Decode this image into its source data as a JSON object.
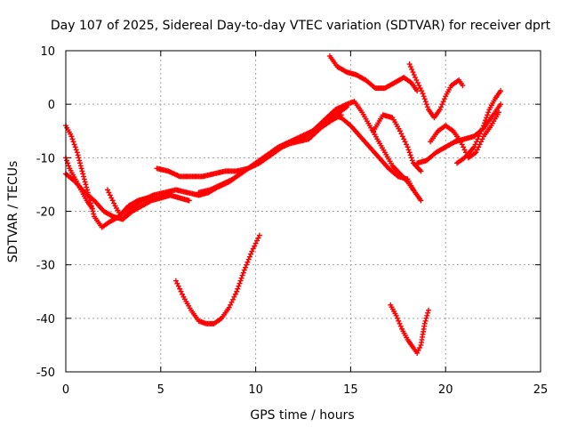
{
  "chart_data": {
    "type": "scatter",
    "title": "Day 107 of 2025, Sidereal Day-to-day VTEC variation (SDTVAR) for receiver dprt",
    "xlabel": "GPS time / hours",
    "ylabel": "SDTVAR / TECUs",
    "xlim": [
      0,
      25
    ],
    "ylim": [
      -50,
      10
    ],
    "xticks": [
      "0",
      "5",
      "10",
      "15",
      "20",
      "25"
    ],
    "yticks": [
      "10",
      "0",
      "-10",
      "-20",
      "-30",
      "-40",
      "-50"
    ],
    "grid": true,
    "marker": "+",
    "color": "#ff0000",
    "series": [
      {
        "points": [
          [
            0,
            -4
          ],
          [
            0.3,
            -6
          ],
          [
            0.6,
            -9
          ],
          [
            0.9,
            -13
          ],
          [
            1.2,
            -17
          ],
          [
            1.5,
            -21
          ],
          [
            1.9,
            -23
          ],
          [
            2.3,
            -22
          ],
          [
            2.8,
            -21
          ],
          [
            3.3,
            -19
          ],
          [
            3.8,
            -18
          ],
          [
            4.3,
            -17.5
          ]
        ]
      },
      {
        "points": [
          [
            0,
            -10
          ],
          [
            0.2,
            -12
          ],
          [
            0.5,
            -14
          ],
          [
            0.8,
            -16
          ],
          [
            1.1,
            -18
          ],
          [
            1.4,
            -19.5
          ]
        ]
      },
      {
        "points": [
          [
            0,
            -13
          ],
          [
            0.5,
            -14.5
          ],
          [
            1,
            -16.5
          ],
          [
            1.5,
            -18
          ],
          [
            2,
            -20
          ],
          [
            2.5,
            -21
          ],
          [
            3,
            -21.5
          ],
          [
            3.5,
            -20
          ],
          [
            4,
            -19
          ],
          [
            4.5,
            -18
          ],
          [
            5,
            -17.5
          ],
          [
            5.5,
            -17
          ],
          [
            6,
            -17.5
          ],
          [
            6.5,
            -18
          ]
        ]
      },
      {
        "points": [
          [
            2.2,
            -16
          ],
          [
            2.6,
            -19
          ],
          [
            3,
            -21.5
          ],
          [
            3.4,
            -19.5
          ],
          [
            4,
            -18
          ],
          [
            4.6,
            -17
          ],
          [
            5.2,
            -16.5
          ],
          [
            5.8,
            -16
          ],
          [
            6.4,
            -16.5
          ],
          [
            7,
            -17
          ],
          [
            7.5,
            -16.5
          ],
          [
            8,
            -15.5
          ],
          [
            8.6,
            -14.5
          ],
          [
            9.2,
            -13
          ],
          [
            9.8,
            -11.5
          ],
          [
            10.4,
            -10
          ],
          [
            11,
            -8.5
          ],
          [
            11.6,
            -7.5
          ],
          [
            12.2,
            -7
          ],
          [
            12.8,
            -6.5
          ],
          [
            13.4,
            -4.5
          ],
          [
            14,
            -3
          ],
          [
            14.5,
            -2
          ]
        ]
      },
      {
        "points": [
          [
            4.8,
            -12
          ],
          [
            5.4,
            -12.5
          ],
          [
            6,
            -13.5
          ],
          [
            6.6,
            -13.5
          ],
          [
            7.2,
            -13.5
          ],
          [
            7.8,
            -13
          ],
          [
            8.4,
            -12.5
          ],
          [
            9,
            -12.5
          ],
          [
            9.6,
            -12
          ],
          [
            10.2,
            -11
          ],
          [
            10.8,
            -9.5
          ],
          [
            11.4,
            -8
          ],
          [
            12,
            -7
          ],
          [
            12.6,
            -6
          ],
          [
            13.2,
            -4.5
          ],
          [
            13.8,
            -3
          ],
          [
            14.4,
            -1.5
          ],
          [
            14.8,
            -0.5
          ]
        ]
      },
      {
        "points": [
          [
            7,
            -16.5
          ],
          [
            7.6,
            -16
          ],
          [
            8.2,
            -15
          ],
          [
            8.8,
            -14
          ],
          [
            9.4,
            -12.5
          ],
          [
            10,
            -11
          ],
          [
            10.6,
            -9.5
          ],
          [
            11.2,
            -8
          ],
          [
            11.8,
            -7
          ],
          [
            12.4,
            -6
          ],
          [
            13,
            -5
          ],
          [
            13.6,
            -3
          ],
          [
            14.2,
            -1
          ],
          [
            14.8,
            0
          ],
          [
            15.2,
            0.5
          ],
          [
            15.6,
            -1.5
          ],
          [
            16,
            -4
          ],
          [
            16.4,
            -6.5
          ],
          [
            16.8,
            -9
          ],
          [
            17.2,
            -11.5
          ],
          [
            17.6,
            -13
          ],
          [
            18,
            -14.5
          ],
          [
            18.4,
            -16.5
          ],
          [
            18.7,
            -18
          ]
        ]
      },
      {
        "points": [
          [
            5.8,
            -33
          ],
          [
            6.2,
            -36
          ],
          [
            6.6,
            -38.5
          ],
          [
            7,
            -40.5
          ],
          [
            7.4,
            -41
          ],
          [
            7.8,
            -41
          ],
          [
            8.2,
            -40
          ],
          [
            8.6,
            -38
          ],
          [
            9,
            -35
          ],
          [
            9.4,
            -31
          ],
          [
            9.8,
            -27.5
          ],
          [
            10.2,
            -24.5
          ]
        ]
      },
      {
        "points": [
          [
            13.9,
            9
          ],
          [
            14.3,
            7
          ],
          [
            14.8,
            6
          ],
          [
            15.3,
            5.5
          ],
          [
            15.8,
            4.5
          ],
          [
            16.3,
            3
          ],
          [
            16.8,
            3
          ],
          [
            17.3,
            4
          ],
          [
            17.8,
            5
          ],
          [
            18.2,
            4
          ],
          [
            18.5,
            2.5
          ]
        ]
      },
      {
        "points": [
          [
            14,
            -2
          ],
          [
            14.5,
            -2.5
          ],
          [
            15,
            -4
          ],
          [
            15.5,
            -6
          ],
          [
            16,
            -8
          ],
          [
            16.5,
            -10
          ],
          [
            17,
            -12
          ],
          [
            17.5,
            -13.5
          ],
          [
            18,
            -14
          ],
          [
            18.3,
            -16
          ]
        ]
      },
      {
        "points": [
          [
            16.2,
            -5
          ],
          [
            16.7,
            -2
          ],
          [
            17.2,
            -2.5
          ],
          [
            17.6,
            -5
          ],
          [
            18,
            -8
          ],
          [
            18.3,
            -11
          ],
          [
            18.7,
            -12.5
          ]
        ]
      },
      {
        "points": [
          [
            18.1,
            7.5
          ],
          [
            18.4,
            5
          ],
          [
            18.8,
            2
          ],
          [
            19.1,
            -1
          ],
          [
            19.4,
            -2.5
          ],
          [
            19.7,
            -1
          ],
          [
            20,
            1.5
          ],
          [
            20.3,
            3.5
          ],
          [
            20.7,
            4.5
          ],
          [
            20.9,
            3.5
          ]
        ]
      },
      {
        "points": [
          [
            18.5,
            -11
          ],
          [
            19,
            -10.5
          ],
          [
            19.5,
            -9
          ],
          [
            20,
            -8
          ],
          [
            20.5,
            -7
          ],
          [
            21,
            -6.5
          ],
          [
            21.5,
            -6
          ],
          [
            22,
            -4.5
          ],
          [
            22.5,
            -2
          ],
          [
            22.9,
            0
          ]
        ]
      },
      {
        "points": [
          [
            19.2,
            -7
          ],
          [
            19.6,
            -5
          ],
          [
            20,
            -4
          ],
          [
            20.4,
            -5
          ],
          [
            20.8,
            -7
          ],
          [
            21.2,
            -10
          ],
          [
            21.6,
            -9
          ],
          [
            22,
            -6
          ],
          [
            22.4,
            -4
          ],
          [
            22.8,
            -1.5
          ]
        ]
      },
      {
        "points": [
          [
            20.6,
            -11
          ],
          [
            21,
            -10
          ],
          [
            21.5,
            -8
          ],
          [
            22,
            -4
          ],
          [
            22.3,
            -1
          ],
          [
            22.6,
            1
          ],
          [
            22.9,
            2.5
          ]
        ]
      },
      {
        "points": [
          [
            17.1,
            -37.5
          ],
          [
            17.4,
            -39.5
          ],
          [
            17.7,
            -42
          ],
          [
            18,
            -44
          ],
          [
            18.3,
            -45.5
          ],
          [
            18.5,
            -46.5
          ],
          [
            18.7,
            -45
          ],
          [
            18.9,
            -41
          ],
          [
            19.1,
            -38.5
          ]
        ]
      }
    ]
  }
}
